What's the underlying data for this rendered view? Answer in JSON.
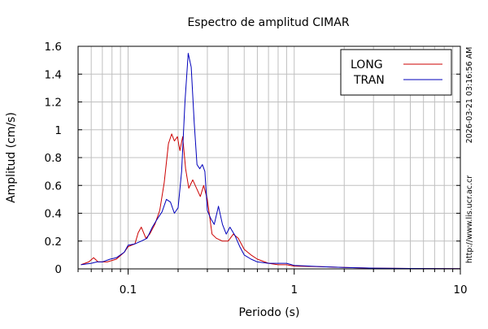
{
  "chart_data": {
    "type": "line",
    "title": "Espectro de amplitud CIMAR",
    "xlabel": "Periodo (s)",
    "ylabel": "Amplitud (cm/s)",
    "x_scale": "log",
    "xlim": [
      0.05,
      10
    ],
    "ylim": [
      0,
      1.6
    ],
    "x_tick_values": [
      0.1,
      1,
      10
    ],
    "x_tick_labels": [
      "0.1",
      "1",
      "10"
    ],
    "y_tick_values": [
      0,
      0.2,
      0.4,
      0.6,
      0.8,
      1,
      1.2,
      1.4,
      1.6
    ],
    "y_tick_labels": [
      "0",
      "0.2",
      "0.4",
      "0.6",
      "0.8",
      "1",
      "1.2",
      "1.4",
      "1.6"
    ],
    "grid": true,
    "legend_position": "top-right",
    "series": [
      {
        "name": "LONG",
        "color": "#cc0000",
        "points": [
          [
            0.052,
            0.03
          ],
          [
            0.058,
            0.05
          ],
          [
            0.062,
            0.08
          ],
          [
            0.066,
            0.05
          ],
          [
            0.075,
            0.05
          ],
          [
            0.085,
            0.07
          ],
          [
            0.095,
            0.12
          ],
          [
            0.1,
            0.16
          ],
          [
            0.11,
            0.18
          ],
          [
            0.115,
            0.26
          ],
          [
            0.12,
            0.3
          ],
          [
            0.128,
            0.22
          ],
          [
            0.135,
            0.25
          ],
          [
            0.145,
            0.32
          ],
          [
            0.155,
            0.42
          ],
          [
            0.165,
            0.62
          ],
          [
            0.175,
            0.9
          ],
          [
            0.183,
            0.97
          ],
          [
            0.19,
            0.92
          ],
          [
            0.198,
            0.95
          ],
          [
            0.205,
            0.85
          ],
          [
            0.213,
            0.95
          ],
          [
            0.222,
            0.72
          ],
          [
            0.232,
            0.58
          ],
          [
            0.245,
            0.64
          ],
          [
            0.258,
            0.58
          ],
          [
            0.272,
            0.52
          ],
          [
            0.285,
            0.6
          ],
          [
            0.3,
            0.5
          ],
          [
            0.32,
            0.25
          ],
          [
            0.34,
            0.22
          ],
          [
            0.37,
            0.2
          ],
          [
            0.4,
            0.2
          ],
          [
            0.43,
            0.25
          ],
          [
            0.46,
            0.22
          ],
          [
            0.5,
            0.14
          ],
          [
            0.55,
            0.1
          ],
          [
            0.6,
            0.07
          ],
          [
            0.7,
            0.04
          ],
          [
            0.8,
            0.03
          ],
          [
            0.9,
            0.03
          ],
          [
            1.0,
            0.02
          ],
          [
            1.5,
            0.015
          ],
          [
            2.0,
            0.01
          ],
          [
            3.0,
            0.005
          ],
          [
            5.0,
            0.003
          ],
          [
            10.0,
            0.002
          ]
        ]
      },
      {
        "name": "TRAN",
        "color": "#0000bb",
        "points": [
          [
            0.052,
            0.03
          ],
          [
            0.06,
            0.04
          ],
          [
            0.065,
            0.05
          ],
          [
            0.07,
            0.05
          ],
          [
            0.078,
            0.07
          ],
          [
            0.085,
            0.08
          ],
          [
            0.095,
            0.12
          ],
          [
            0.1,
            0.17
          ],
          [
            0.11,
            0.18
          ],
          [
            0.12,
            0.2
          ],
          [
            0.13,
            0.22
          ],
          [
            0.14,
            0.3
          ],
          [
            0.15,
            0.36
          ],
          [
            0.16,
            0.41
          ],
          [
            0.17,
            0.5
          ],
          [
            0.18,
            0.48
          ],
          [
            0.19,
            0.4
          ],
          [
            0.2,
            0.44
          ],
          [
            0.21,
            0.7
          ],
          [
            0.22,
            1.2
          ],
          [
            0.23,
            1.55
          ],
          [
            0.24,
            1.45
          ],
          [
            0.25,
            1.05
          ],
          [
            0.26,
            0.75
          ],
          [
            0.27,
            0.72
          ],
          [
            0.28,
            0.75
          ],
          [
            0.29,
            0.7
          ],
          [
            0.3,
            0.42
          ],
          [
            0.315,
            0.36
          ],
          [
            0.33,
            0.32
          ],
          [
            0.35,
            0.45
          ],
          [
            0.37,
            0.32
          ],
          [
            0.39,
            0.25
          ],
          [
            0.41,
            0.3
          ],
          [
            0.44,
            0.24
          ],
          [
            0.47,
            0.16
          ],
          [
            0.5,
            0.1
          ],
          [
            0.55,
            0.07
          ],
          [
            0.6,
            0.05
          ],
          [
            0.7,
            0.04
          ],
          [
            0.8,
            0.04
          ],
          [
            0.9,
            0.04
          ],
          [
            1.0,
            0.025
          ],
          [
            1.5,
            0.015
          ],
          [
            2.0,
            0.01
          ],
          [
            3.0,
            0.005
          ],
          [
            5.0,
            0.003
          ],
          [
            10.0,
            0.002
          ]
        ]
      }
    ]
  },
  "timestamp": "2026-03-21 03:16:56 AM",
  "website": "http://www.lis.ucr.ac.cr"
}
